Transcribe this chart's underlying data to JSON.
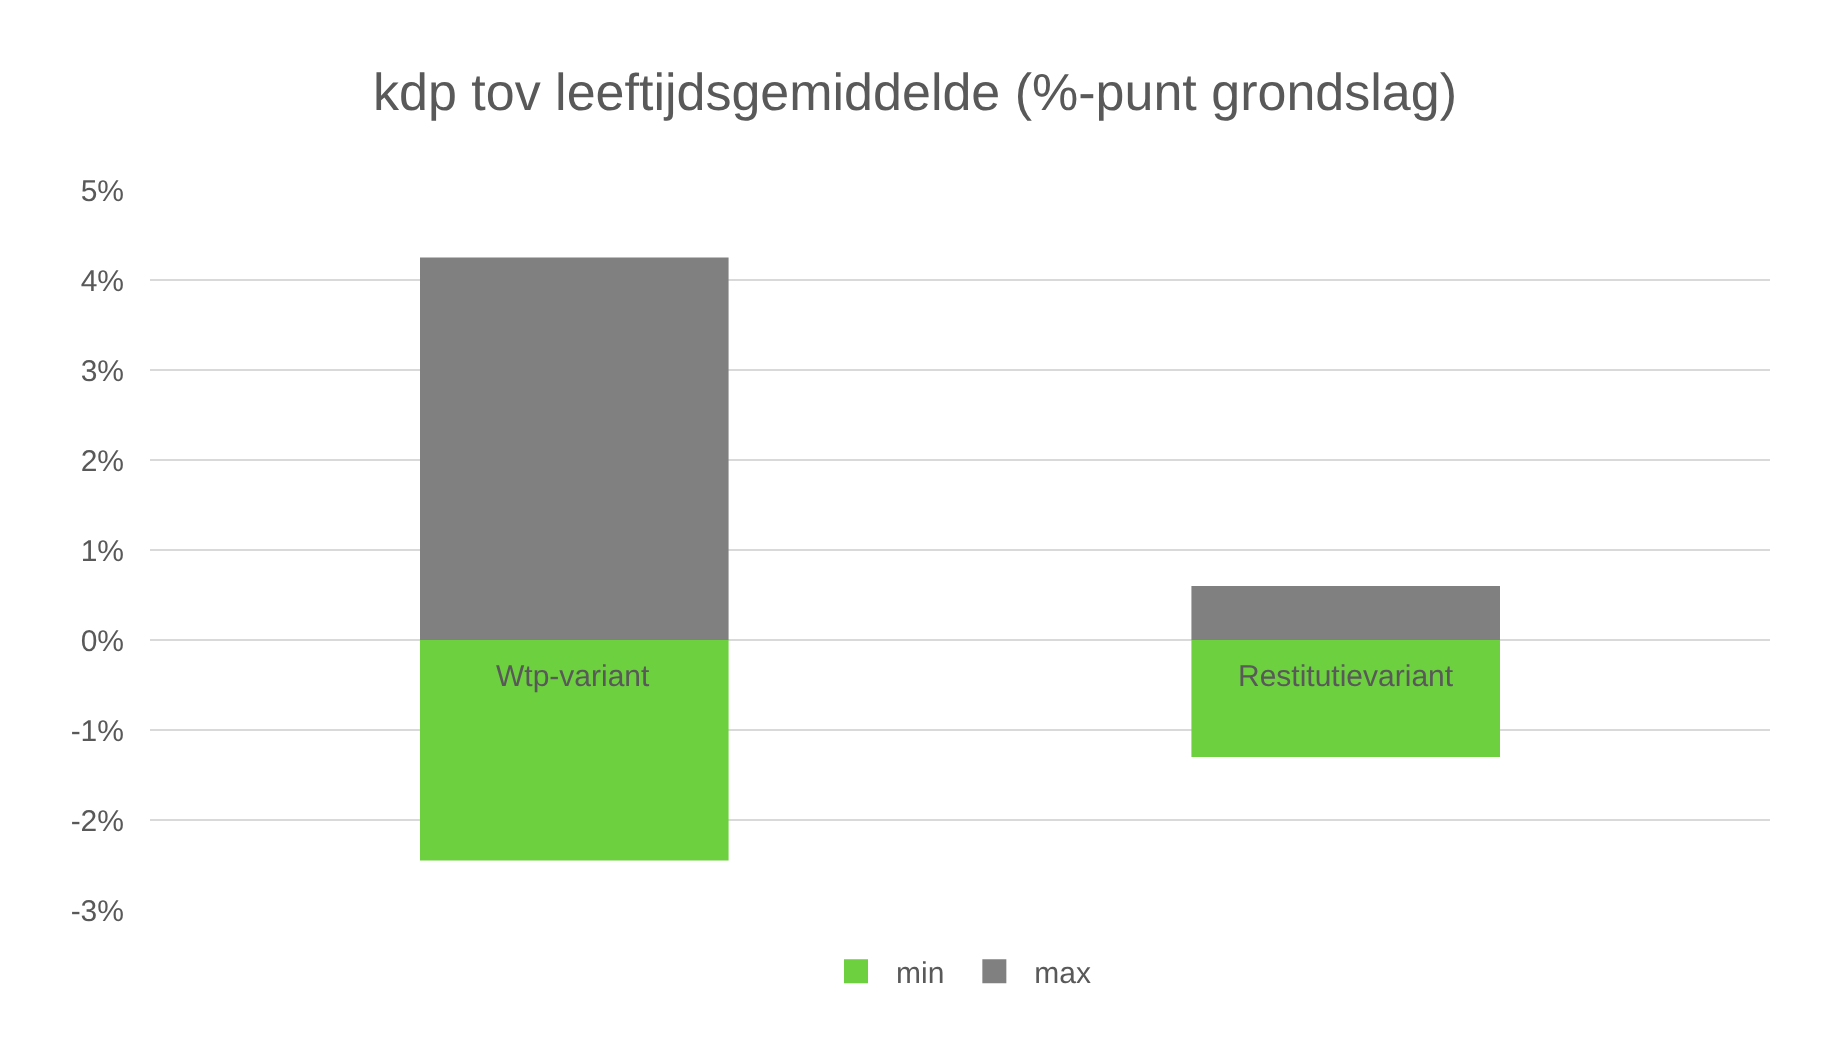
{
  "chart_data": {
    "type": "bar",
    "title": "kdp tov leeftijdsgemiddelde (%-punt grondslag)",
    "categories": [
      "Wtp-variant",
      "Restitutievariant"
    ],
    "series": [
      {
        "name": "min",
        "color": "#6cd03f",
        "values": [
          -2.45,
          -1.3
        ]
      },
      {
        "name": "max",
        "color": "#808080",
        "values": [
          4.25,
          0.6
        ]
      }
    ],
    "stacked": true,
    "ylim": [
      -3,
      5
    ],
    "yticks": [
      {
        "value": -3,
        "label": "-3%"
      },
      {
        "value": -2,
        "label": "-2%"
      },
      {
        "value": -1,
        "label": "-1%"
      },
      {
        "value": 0,
        "label": "0%"
      },
      {
        "value": 1,
        "label": "1%"
      },
      {
        "value": 2,
        "label": "2%"
      },
      {
        "value": 3,
        "label": "3%"
      },
      {
        "value": 4,
        "label": "4%"
      },
      {
        "value": 5,
        "label": "5%"
      }
    ],
    "grid": "y",
    "legend": "bottom"
  }
}
